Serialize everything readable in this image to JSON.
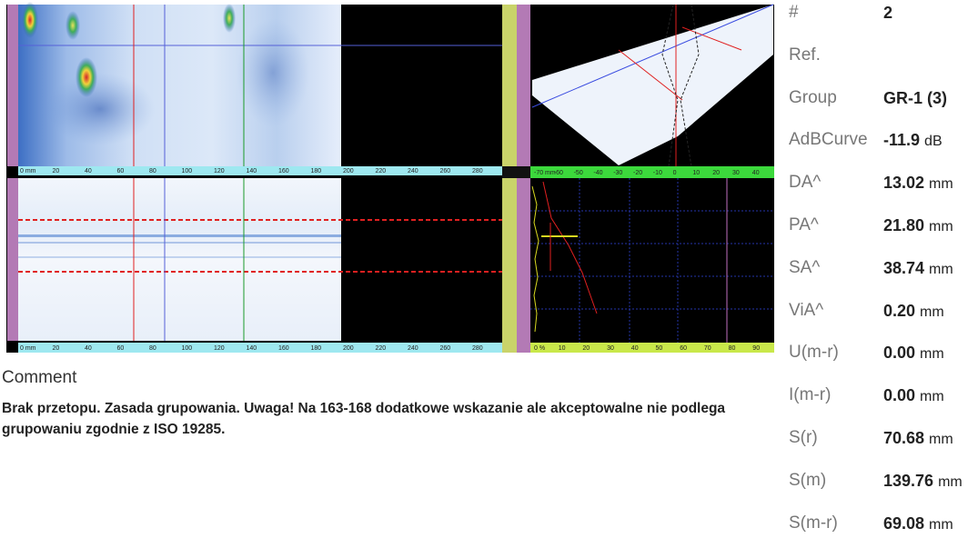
{
  "scans": {
    "top_ruler": [
      "0 mm",
      "20",
      "40",
      "60",
      "80",
      "100",
      "120",
      "140",
      "160",
      "180",
      "200",
      "220",
      "240",
      "260",
      "280"
    ],
    "bottom_ruler": [
      "0 mm",
      "20",
      "40",
      "60",
      "80",
      "100",
      "120",
      "140",
      "160",
      "180",
      "200",
      "220",
      "240",
      "260",
      "280"
    ],
    "sector_ruler": [
      "-70 mm",
      "-60",
      "-50",
      "-40",
      "-30",
      "-20",
      "-10",
      "0",
      "10",
      "20",
      "30",
      "40"
    ],
    "ascan_ruler": [
      "0 %",
      "10",
      "20",
      "30",
      "40",
      "50",
      "60",
      "70",
      "80",
      "90"
    ]
  },
  "comment": {
    "title": "Comment",
    "text": "Brak przetopu. Zasada grupowania. Uwaga! Na 163-168 dodatkowe wskazanie ale akceptowalne nie podlega grupowaniu zgodnie z ISO 19285."
  },
  "fields": [
    {
      "label": "#",
      "value": "2"
    },
    {
      "label": "Ref."
    },
    {
      "label": "Group",
      "value": "GR-1 (3)"
    },
    {
      "label": "AdBCurve",
      "value": "-11.9",
      "unit": "dB"
    },
    {
      "label": "DA^",
      "value": "13.02",
      "unit": "mm"
    },
    {
      "label": "PA^",
      "value": "21.80",
      "unit": "mm"
    },
    {
      "label": "SA^",
      "value": "38.74",
      "unit": "mm"
    },
    {
      "label": "ViA^",
      "value": "0.20",
      "unit": "mm"
    },
    {
      "label": "U(m-r)",
      "value": "0.00",
      "unit": "mm"
    },
    {
      "label": "I(m-r)",
      "value": "0.00",
      "unit": "mm"
    },
    {
      "label": "S(r)",
      "value": "70.68",
      "unit": "mm"
    },
    {
      "label": "S(m)",
      "value": "139.76",
      "unit": "mm"
    },
    {
      "label": "S(m-r)",
      "value": "69.08",
      "unit": "mm"
    }
  ]
}
